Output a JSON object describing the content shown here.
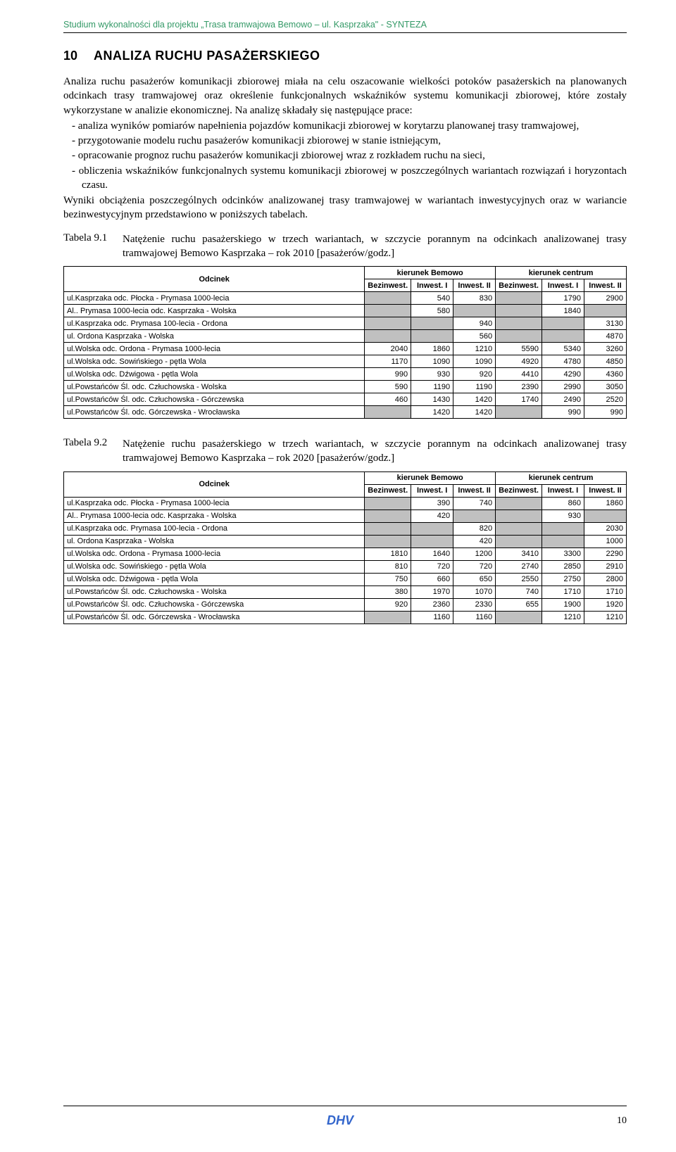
{
  "header": "Studium wykonalności dla projektu „Trasa tramwajowa Bemowo – ul. Kasprzaka\" - SYNTEZA",
  "section": {
    "num": "10",
    "title": "ANALIZA RUCHU PASAŻERSKIEGO"
  },
  "p1": "Analiza ruchu pasażerów komunikacji zbiorowej miała na celu oszacowanie wielkości potoków pasażerskich na planowanych odcinkach trasy tramwajowej oraz określenie funkcjonalnych wskaźników systemu komunikacji zbiorowej, które zostały wykorzystane w analizie ekonomicznej. Na analizę składały się następujące prace:",
  "bullets": [
    "analiza wyników pomiarów napełnienia pojazdów komunikacji zbiorowej w korytarzu planowanej trasy tramwajowej,",
    "przygotowanie modelu ruchu pasażerów komunikacji zbiorowej w stanie istniejącym,",
    "opracowanie prognoz ruchu pasażerów komunikacji zbiorowej wraz z rozkładem ruchu na sieci,",
    "obliczenia wskaźników funkcjonalnych systemu komunikacji zbiorowej w poszczególnych wariantach rozwiązań i horyzontach czasu."
  ],
  "p2": "Wyniki obciążenia poszczególnych odcinków analizowanej trasy tramwajowej w wariantach inwestycyjnych oraz w wariancie bezinwestycyjnym przedstawiono w poniższych tabelach.",
  "table1": {
    "label": "Tabela 9.1",
    "caption": "Natężenie ruchu pasażerskiego w trzech wariantach, w szczycie porannym na odcinkach analizowanej trasy tramwajowej Bemowo Kasprzaka – rok 2010 [pasażerów/godz.]",
    "head1": "Odcinek",
    "head2": "kierunek Bemowo",
    "head3": "kierunek centrum",
    "sub": [
      "Bezinwest.",
      "Inwest. I",
      "Inwest. II",
      "Bezinwest.",
      "Inwest. I",
      "Inwest. II"
    ],
    "rows": [
      {
        "o": "ul.Kasprzaka odc. Płocka - Prymasa 1000-lecia",
        "v": [
          "",
          "540",
          "830",
          "",
          "1790",
          "2900"
        ],
        "g": [
          1,
          0,
          0,
          1,
          0,
          0
        ]
      },
      {
        "o": "Al.. Prymasa 1000-lecia odc. Kasprzaka - Wolska",
        "v": [
          "",
          "580",
          "",
          "",
          "1840",
          ""
        ],
        "g": [
          1,
          0,
          1,
          1,
          0,
          1
        ]
      },
      {
        "o": "ul.Kasprzaka odc. Prymasa 100-lecia - Ordona",
        "v": [
          "",
          "",
          "940",
          "",
          "",
          "3130"
        ],
        "g": [
          1,
          1,
          0,
          1,
          1,
          0
        ]
      },
      {
        "o": "ul. Ordona Kasprzaka - Wolska",
        "v": [
          "",
          "",
          "560",
          "",
          "",
          "4870"
        ],
        "g": [
          1,
          1,
          0,
          1,
          1,
          0
        ]
      },
      {
        "o": "ul.Wolska odc. Ordona - Prymasa 1000-lecia",
        "v": [
          "2040",
          "1860",
          "1210",
          "5590",
          "5340",
          "3260"
        ],
        "g": [
          0,
          0,
          0,
          0,
          0,
          0
        ]
      },
      {
        "o": "ul.Wolska odc. Sowińskiego - pętla Wola",
        "v": [
          "1170",
          "1090",
          "1090",
          "4920",
          "4780",
          "4850"
        ],
        "g": [
          0,
          0,
          0,
          0,
          0,
          0
        ]
      },
      {
        "o": "ul.Wolska odc. Dźwigowa - pętla Wola",
        "v": [
          "990",
          "930",
          "920",
          "4410",
          "4290",
          "4360"
        ],
        "g": [
          0,
          0,
          0,
          0,
          0,
          0
        ]
      },
      {
        "o": "ul.Powstańców Śl. odc. Człuchowska - Wolska",
        "v": [
          "590",
          "1190",
          "1190",
          "2390",
          "2990",
          "3050"
        ],
        "g": [
          0,
          0,
          0,
          0,
          0,
          0
        ]
      },
      {
        "o": "ul.Powstańców Śl. odc. Człuchowska - Górczewska",
        "v": [
          "460",
          "1430",
          "1420",
          "1740",
          "2490",
          "2520"
        ],
        "g": [
          0,
          0,
          0,
          0,
          0,
          0
        ]
      },
      {
        "o": "ul.Powstańców Śl. odc. Górczewska - Wrocławska",
        "v": [
          "",
          "1420",
          "1420",
          "",
          "990",
          "990"
        ],
        "g": [
          1,
          0,
          0,
          1,
          0,
          0
        ]
      }
    ]
  },
  "table2": {
    "label": "Tabela 9.2",
    "caption": "Natężenie ruchu pasażerskiego w trzech wariantach, w szczycie porannym na odcinkach analizowanej trasy tramwajowej Bemowo Kasprzaka – rok 2020 [pasażerów/godz.]",
    "head1": "Odcinek",
    "head2": "kierunek Bemowo",
    "head3": "kierunek centrum",
    "sub": [
      "Bezinwest.",
      "Inwest. I",
      "Inwest. II",
      "Bezinwest.",
      "Inwest. I",
      "Inwest. II"
    ],
    "rows": [
      {
        "o": "ul.Kasprzaka odc. Płocka - Prymasa 1000-lecia",
        "v": [
          "",
          "390",
          "740",
          "",
          "860",
          "1860"
        ],
        "g": [
          1,
          0,
          0,
          1,
          0,
          0
        ]
      },
      {
        "o": "Al.. Prymasa 1000-lecia odc. Kasprzaka - Wolska",
        "v": [
          "",
          "420",
          "",
          "",
          "930",
          ""
        ],
        "g": [
          1,
          0,
          1,
          1,
          0,
          1
        ]
      },
      {
        "o": "ul.Kasprzaka odc. Prymasa 100-lecia - Ordona",
        "v": [
          "",
          "",
          "820",
          "",
          "",
          "2030"
        ],
        "g": [
          1,
          1,
          0,
          1,
          1,
          0
        ]
      },
      {
        "o": "ul. Ordona Kasprzaka - Wolska",
        "v": [
          "",
          "",
          "420",
          "",
          "",
          "1000"
        ],
        "g": [
          1,
          1,
          0,
          1,
          1,
          0
        ]
      },
      {
        "o": "ul.Wolska odc. Ordona - Prymasa 1000-lecia",
        "v": [
          "1810",
          "1640",
          "1200",
          "3410",
          "3300",
          "2290"
        ],
        "g": [
          0,
          0,
          0,
          0,
          0,
          0
        ]
      },
      {
        "o": "ul.Wolska odc. Sowińskiego - pętla Wola",
        "v": [
          "810",
          "720",
          "720",
          "2740",
          "2850",
          "2910"
        ],
        "g": [
          0,
          0,
          0,
          0,
          0,
          0
        ]
      },
      {
        "o": "ul.Wolska odc. Dźwigowa - pętla Wola",
        "v": [
          "750",
          "660",
          "650",
          "2550",
          "2750",
          "2800"
        ],
        "g": [
          0,
          0,
          0,
          0,
          0,
          0
        ]
      },
      {
        "o": "ul.Powstańców Śl. odc. Człuchowska - Wolska",
        "v": [
          "380",
          "1970",
          "1070",
          "740",
          "1710",
          "1710"
        ],
        "g": [
          0,
          0,
          0,
          0,
          0,
          0
        ]
      },
      {
        "o": "ul.Powstańców Śl. odc. Człuchowska - Górczewska",
        "v": [
          "920",
          "2360",
          "2330",
          "655",
          "1900",
          "1920"
        ],
        "g": [
          0,
          0,
          0,
          0,
          0,
          0
        ]
      },
      {
        "o": "ul.Powstańców Śl. odc. Górczewska - Wrocławska",
        "v": [
          "",
          "1160",
          "1160",
          "",
          "1210",
          "1210"
        ],
        "g": [
          1,
          0,
          0,
          1,
          0,
          0
        ]
      }
    ]
  },
  "logo_text": "DHV",
  "page_num": "10"
}
